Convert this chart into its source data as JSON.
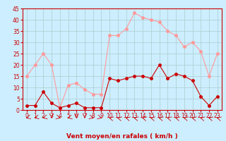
{
  "title": "",
  "xlabel": "Vent moyen/en rafales ( km/h )",
  "ylabel": "",
  "background_color": "#cceeff",
  "grid_color": "#aacccc",
  "hours": [
    0,
    1,
    2,
    3,
    4,
    5,
    6,
    7,
    8,
    9,
    10,
    11,
    12,
    13,
    14,
    15,
    16,
    17,
    18,
    19,
    20,
    21,
    22,
    23
  ],
  "wind_avg": [
    2,
    2,
    8,
    3,
    1,
    2,
    3,
    1,
    1,
    1,
    14,
    13,
    14,
    15,
    15,
    14,
    20,
    14,
    16,
    15,
    13,
    6,
    2,
    6
  ],
  "wind_gust": [
    15,
    20,
    25,
    20,
    1,
    11,
    12,
    9,
    7,
    7,
    33,
    33,
    36,
    43,
    41,
    40,
    39,
    35,
    33,
    28,
    30,
    26,
    15,
    25
  ],
  "ylim_min": 0,
  "ylim_max": 45,
  "yticks": [
    0,
    5,
    10,
    15,
    20,
    25,
    30,
    35,
    40,
    45
  ],
  "avg_color": "#cc0000",
  "gust_color": "#ff9999",
  "line_width": 0.8,
  "marker_size": 2.5,
  "xlabel_fontsize": 6.5,
  "tick_fontsize": 5.5
}
